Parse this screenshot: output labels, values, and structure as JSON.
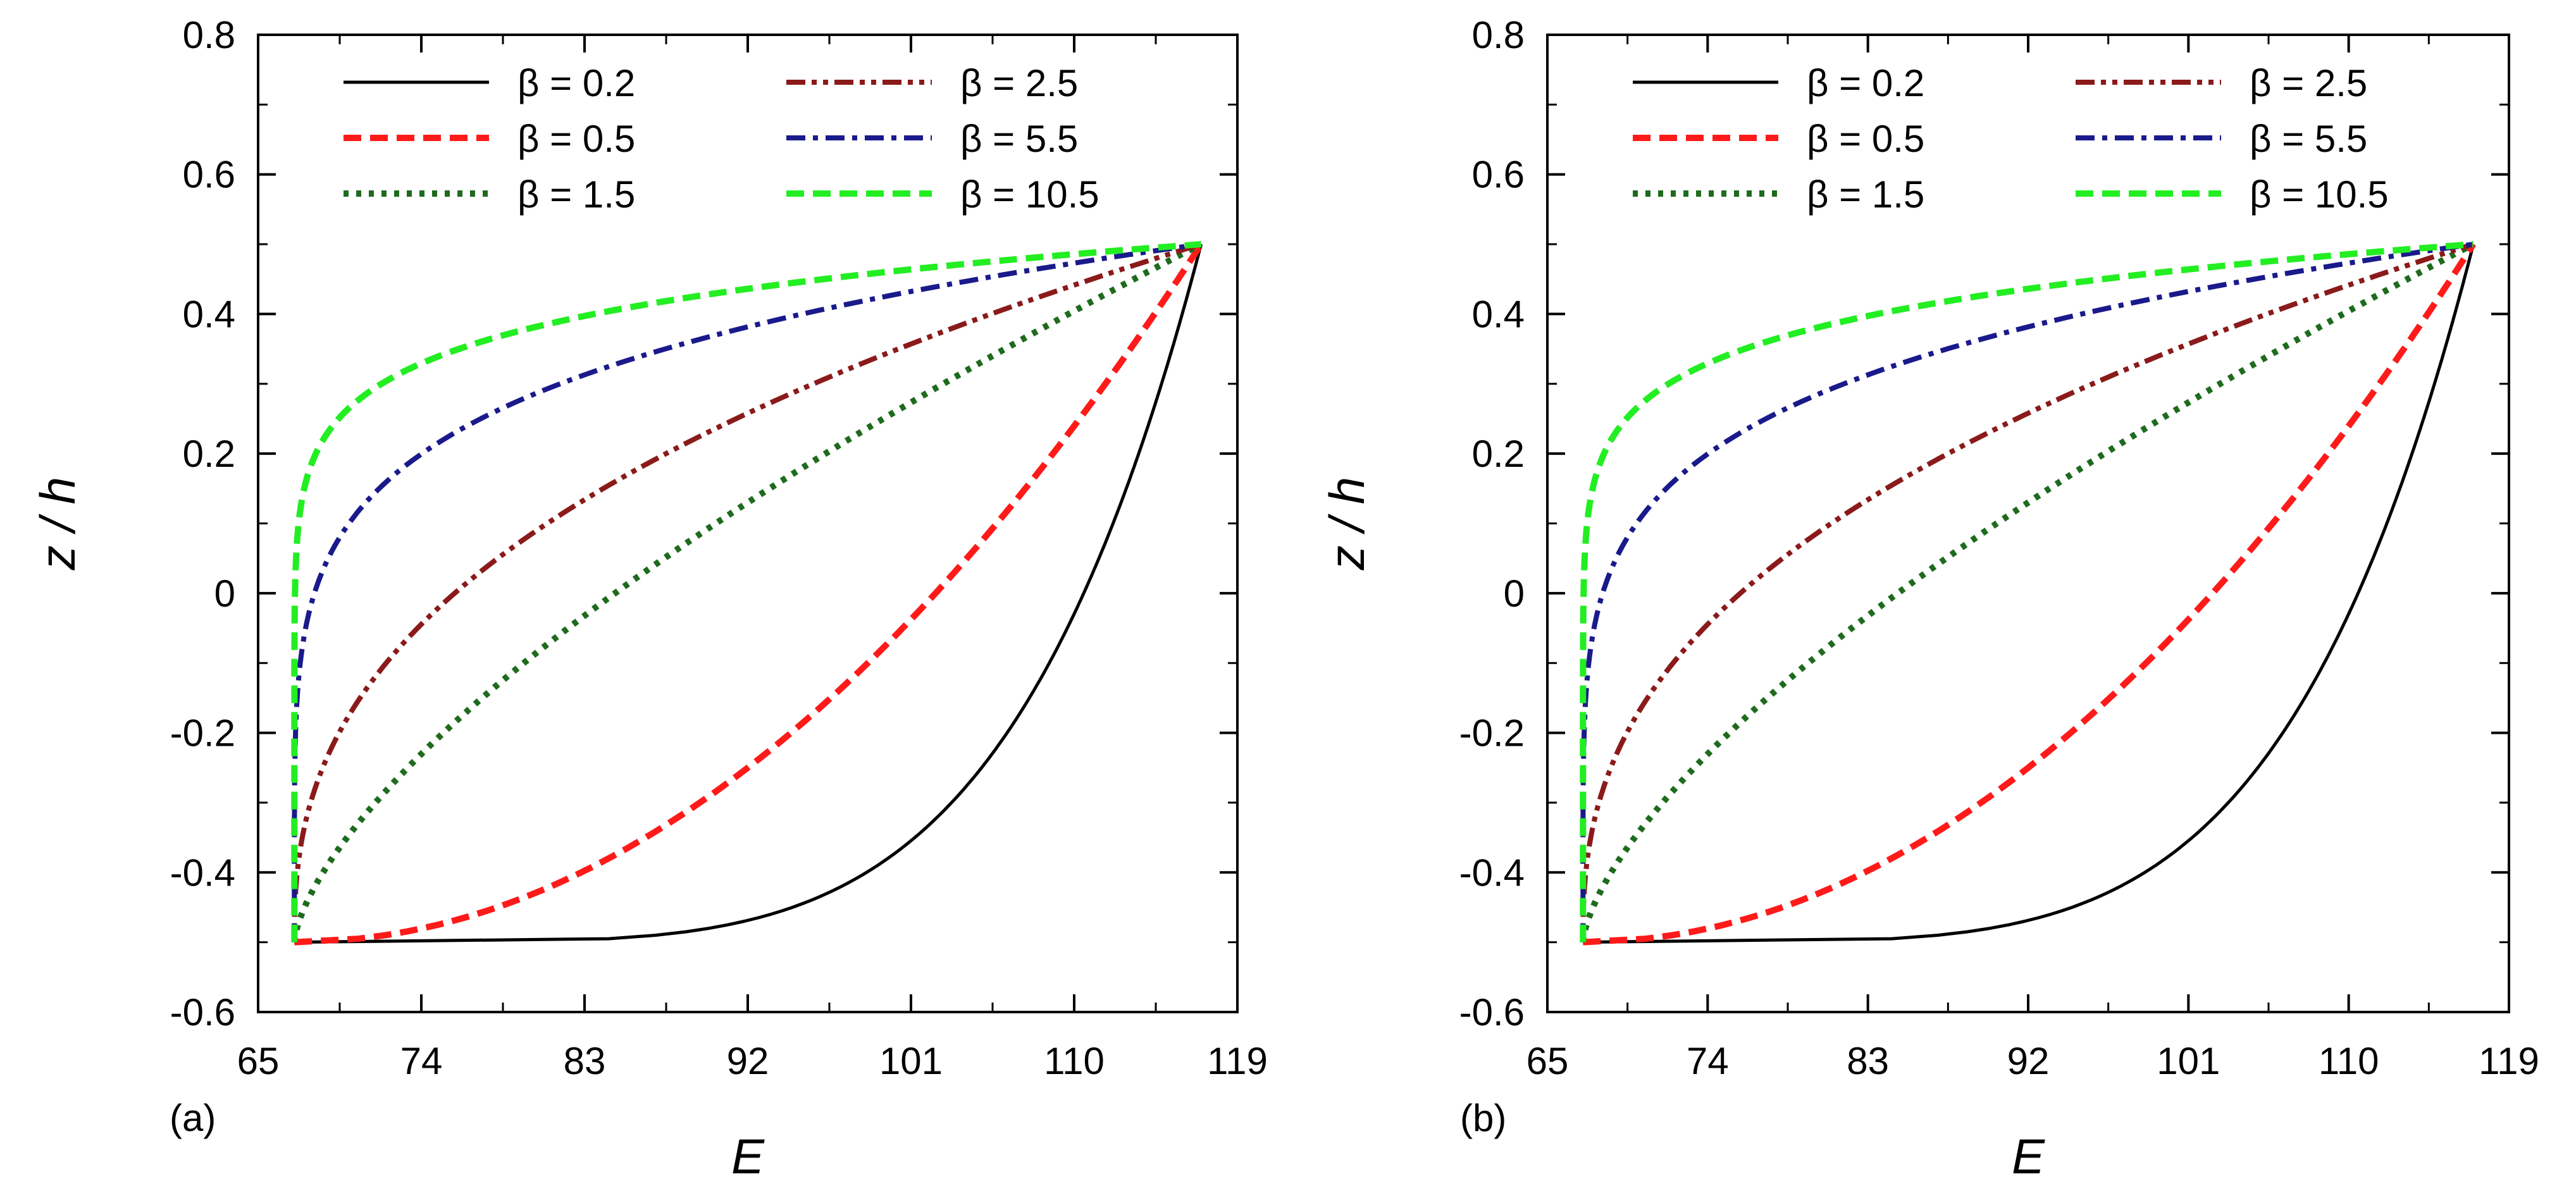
{
  "chart_data": [
    {
      "type": "line",
      "panel_label": "(a)",
      "xlabel": "E",
      "ylabel": "z / h",
      "xlim": [
        65,
        119
      ],
      "ylim": [
        -0.6,
        0.8
      ],
      "xticks": [
        65,
        74,
        83,
        92,
        101,
        110,
        119
      ],
      "yticks": [
        -0.6,
        -0.4,
        -0.2,
        0,
        0.2,
        0.4,
        0.6,
        0.8
      ],
      "xtick_labels": [
        "65",
        "74",
        "83",
        "92",
        "101",
        "110",
        "119"
      ],
      "ytick_labels": [
        "-0.6",
        "-0.4",
        "-0.2",
        "0",
        "0.2",
        "0.4",
        "0.6",
        "0.8"
      ],
      "grid": false,
      "legend_position": "top, two columns",
      "E_bottom": 67,
      "E_top": 117,
      "series": [
        {
          "name": "β = 0.2",
          "beta": 0.2,
          "color": "#000000",
          "dash": "solid"
        },
        {
          "name": "β = 0.5",
          "beta": 0.5,
          "color": "#ff1a1a",
          "dash": "dash"
        },
        {
          "name": "β = 1.5",
          "beta": 1.5,
          "color": "#1e6b1e",
          "dash": "dot"
        },
        {
          "name": "β = 2.5",
          "beta": 2.5,
          "color": "#8b1a1a",
          "dash": "dashdotdot"
        },
        {
          "name": "β = 5.5",
          "beta": 5.5,
          "color": "#1a1a8c",
          "dash": "dashdot"
        },
        {
          "name": "β = 10.5",
          "beta": 10.5,
          "color": "#22ee22",
          "dash": "dash"
        }
      ]
    },
    {
      "type": "line",
      "panel_label": "(b)",
      "xlabel": "E",
      "ylabel": "z / h",
      "xlim": [
        65,
        119
      ],
      "ylim": [
        -0.6,
        0.8
      ],
      "xticks": [
        65,
        74,
        83,
        92,
        101,
        110,
        119
      ],
      "yticks": [
        -0.6,
        -0.4,
        -0.2,
        0,
        0.2,
        0.4,
        0.6,
        0.8
      ],
      "xtick_labels": [
        "65",
        "74",
        "83",
        "92",
        "101",
        "110",
        "119"
      ],
      "ytick_labels": [
        "-0.6",
        "-0.4",
        "-0.2",
        "0",
        "0.2",
        "0.4",
        "0.6",
        "0.8"
      ],
      "grid": false,
      "legend_position": "top, two columns",
      "E_bottom": 67,
      "E_top": 117,
      "series": [
        {
          "name": "β = 0.2",
          "beta": 0.2,
          "color": "#000000",
          "dash": "solid"
        },
        {
          "name": "β = 0.5",
          "beta": 0.5,
          "color": "#ff1a1a",
          "dash": "dash"
        },
        {
          "name": "β = 1.5",
          "beta": 1.5,
          "color": "#1e6b1e",
          "dash": "dot"
        },
        {
          "name": "β = 2.5",
          "beta": 2.5,
          "color": "#8b1a1a",
          "dash": "dashdotdot"
        },
        {
          "name": "β = 5.5",
          "beta": 5.5,
          "color": "#1a1a8c",
          "dash": "dashdot"
        },
        {
          "name": "β = 10.5",
          "beta": 10.5,
          "color": "#22ee22",
          "dash": "dash"
        }
      ]
    }
  ]
}
